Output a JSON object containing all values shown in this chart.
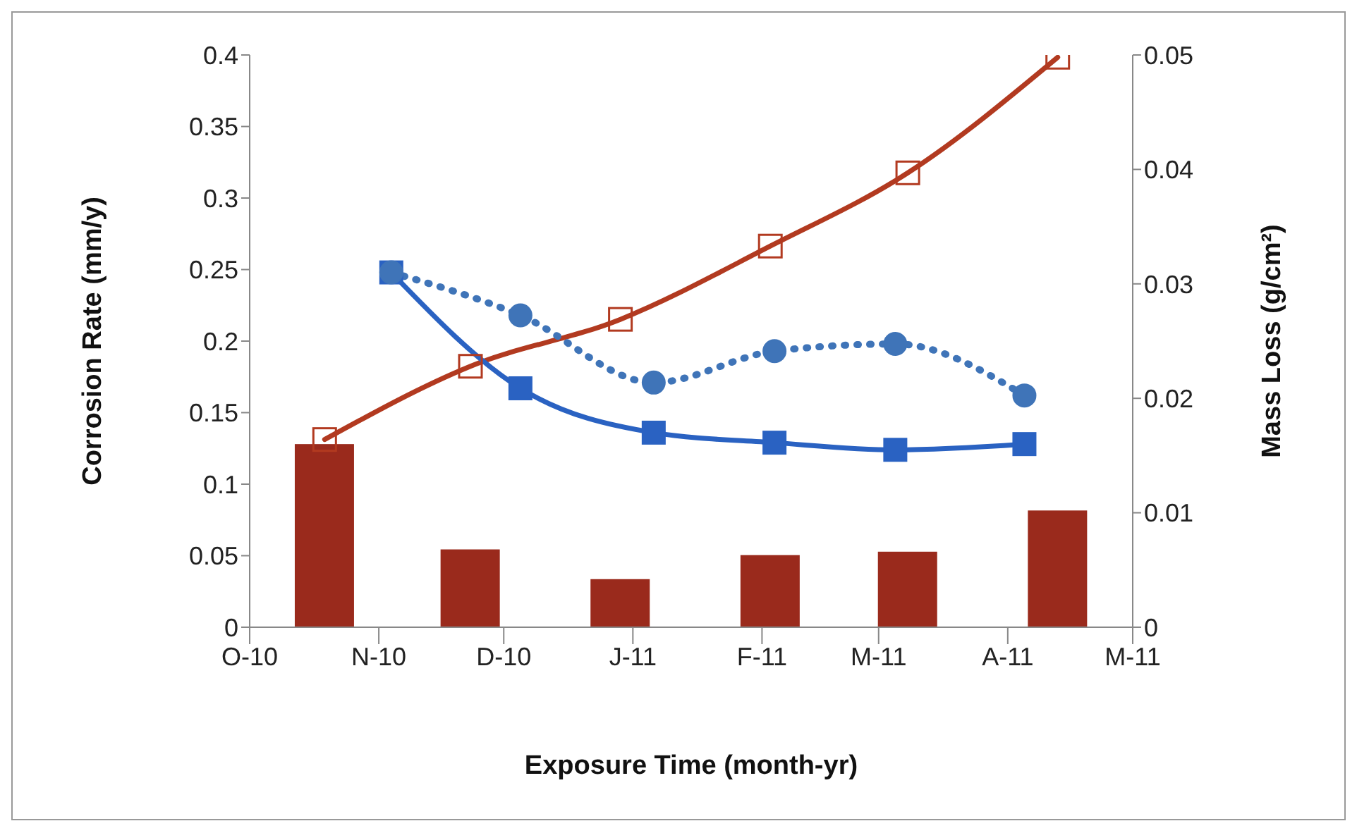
{
  "chart_data": {
    "type": "line",
    "xlabel": "Exposure Time (month-yr)",
    "ylabel": "Corrosion Rate (mm/y)",
    "y2label": "Mass Loss (g/cm²)",
    "xlim": [
      "2010-10-01",
      "2011-05-01"
    ],
    "xticks": [
      {
        "value": "2010-10-01",
        "label": "O-10"
      },
      {
        "value": "2010-11-01",
        "label": "N-10"
      },
      {
        "value": "2010-12-01",
        "label": "D-10"
      },
      {
        "value": "2011-01-01",
        "label": "J-11"
      },
      {
        "value": "2011-02-01",
        "label": "F-11"
      },
      {
        "value": "2011-03-01",
        "label": "M-11"
      },
      {
        "value": "2011-04-01",
        "label": "A-11"
      },
      {
        "value": "2011-05-01",
        "label": "M-11"
      }
    ],
    "ylim": [
      0,
      0.4
    ],
    "yticks": [
      0,
      0.05,
      0.1,
      0.15,
      0.2,
      0.25,
      0.3,
      0.35,
      0.4
    ],
    "y2lim": [
      0,
      0.05
    ],
    "y2ticks": [
      0,
      0.01,
      0.02,
      0.03,
      0.04,
      0.05
    ],
    "grid": false,
    "legend": false,
    "series": [
      {
        "type": "bar",
        "axis": "y2",
        "color": "#9a2a1c",
        "x": [
          "2010-10-19",
          "2010-11-23",
          "2010-12-29",
          "2011-02-03",
          "2011-03-08",
          "2011-04-13"
        ],
        "values": [
          0.016,
          0.0068,
          0.0042,
          0.0063,
          0.0066,
          0.0102
        ]
      },
      {
        "axis": "y2",
        "color": "#b23a20",
        "marker": "square",
        "line_style": "solid",
        "x": [
          "2010-10-19",
          "2010-11-23",
          "2010-12-29",
          "2011-02-03",
          "2011-03-08",
          "2011-04-13"
        ],
        "values": [
          0.0164,
          0.0228,
          0.0269,
          0.0333,
          0.0397,
          0.0498
        ]
      },
      {
        "axis": "y",
        "color": "#2a62c2",
        "marker": "square",
        "line_style": "solid",
        "x": [
          "2010-11-04",
          "2010-12-05",
          "2011-01-06",
          "2011-02-04",
          "2011-03-05",
          "2011-04-05"
        ],
        "values": [
          0.248,
          0.167,
          0.136,
          0.129,
          0.124,
          0.128
        ]
      },
      {
        "axis": "y",
        "color": "#3f74b8",
        "marker": "circle",
        "line_style": "dotted",
        "x": [
          "2010-11-04",
          "2010-12-05",
          "2011-01-06",
          "2011-02-04",
          "2011-03-05",
          "2011-04-05"
        ],
        "values": [
          0.248,
          0.218,
          0.171,
          0.193,
          0.198,
          0.162
        ]
      }
    ]
  }
}
